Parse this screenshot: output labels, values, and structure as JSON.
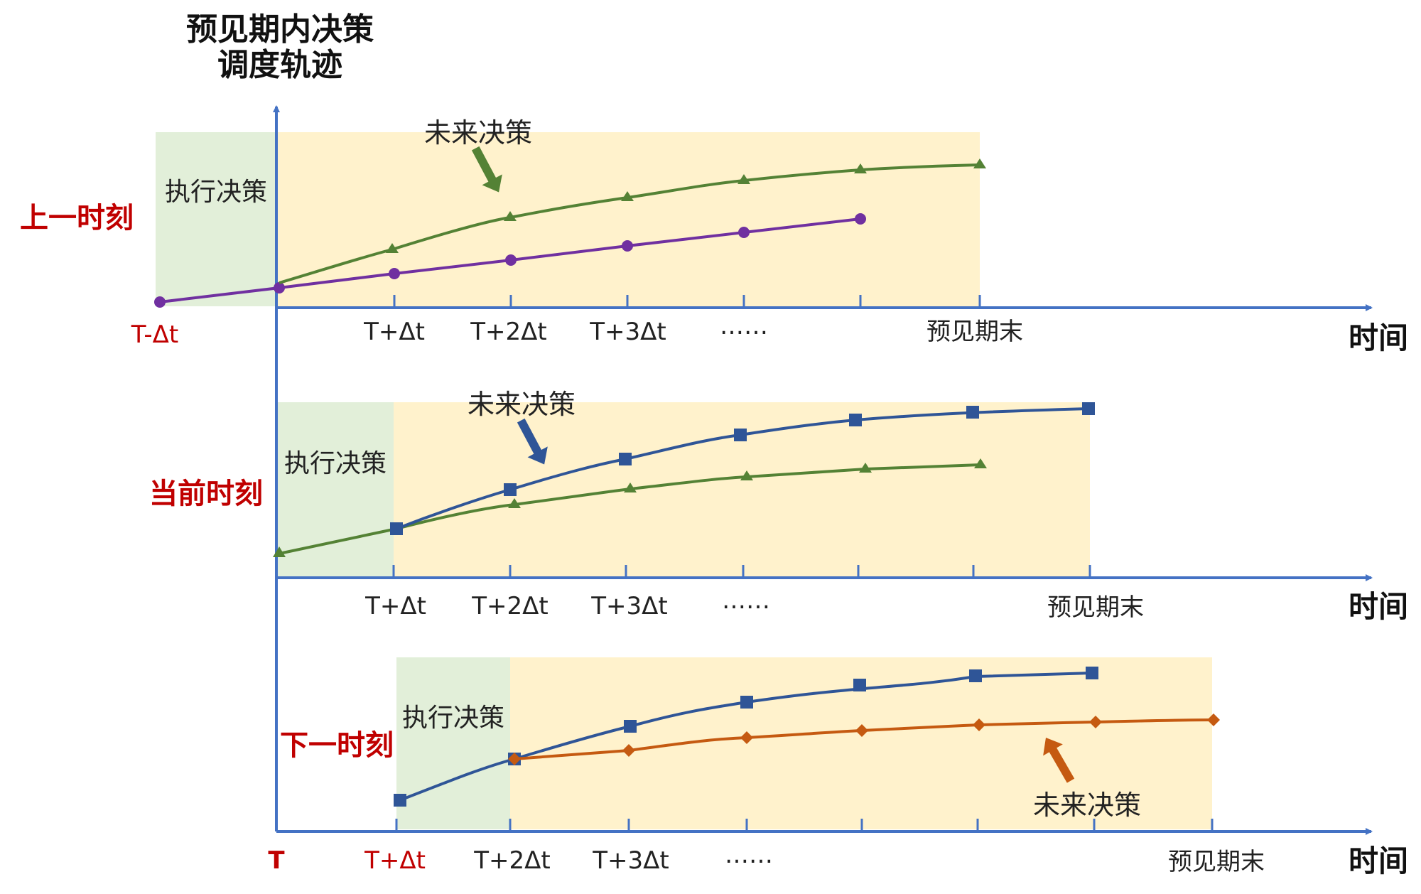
{
  "title_line1": "预见期内决策",
  "title_line2": "调度轨迹",
  "time_label": "时间",
  "exec_label": "执行决策",
  "future_label": "未来决策",
  "horizon_end_label": "预见期末",
  "origin_label": "T",
  "colors": {
    "axis": "#4472c4",
    "exec_bg": "#e2efd9",
    "future_bg": "#fff2cc",
    "green": "#548235",
    "purple": "#7030a0",
    "blue": "#2f5597",
    "orange": "#c55a11",
    "red_text": "#c00000"
  },
  "rows": [
    {
      "label": "上一时刻",
      "ticks": [
        "T-Δt",
        "T+Δt",
        "T+2Δt",
        "T+3Δt",
        "……"
      ],
      "series": [
        {
          "color_key": "purple",
          "marker": "circle"
        },
        {
          "color_key": "green",
          "marker": "triangle"
        }
      ]
    },
    {
      "label": "当前时刻",
      "ticks": [
        "T+Δt",
        "T+2Δt",
        "T+3Δt",
        "……"
      ],
      "series": [
        {
          "color_key": "green",
          "marker": "triangle"
        },
        {
          "color_key": "blue",
          "marker": "square"
        }
      ]
    },
    {
      "label": "下一时刻",
      "ticks": [
        "T+Δt",
        "T+2Δt",
        "T+3Δt",
        "……"
      ],
      "series": [
        {
          "color_key": "blue",
          "marker": "square"
        },
        {
          "color_key": "orange",
          "marker": "diamond"
        }
      ]
    }
  ]
}
